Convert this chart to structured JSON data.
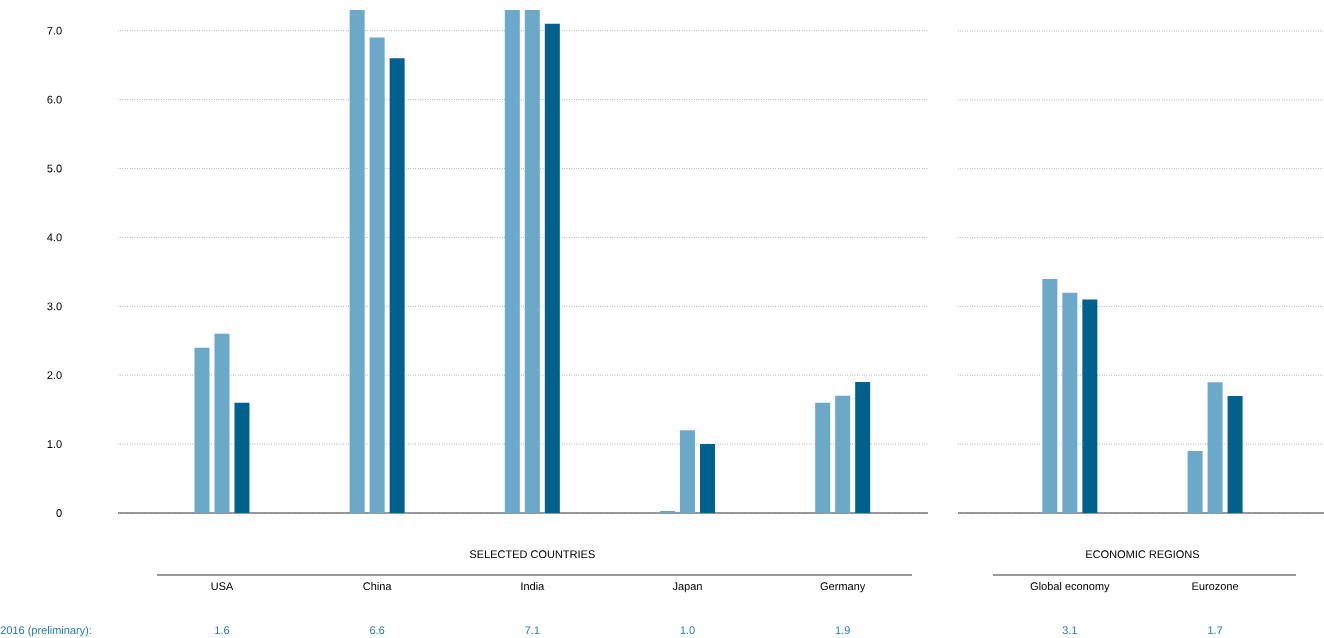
{
  "chart_data": [
    {
      "type": "bar",
      "xlabel": "SELECTED COUNTRIES",
      "categories": [
        "USA",
        "China",
        "India",
        "Japan",
        "Germany"
      ],
      "series": [
        {
          "color": "#6ca9c8",
          "values": [
            2.4,
            7.3,
            7.3,
            0.03,
            1.6
          ]
        },
        {
          "color": "#6ca9c8",
          "values": [
            2.6,
            6.9,
            7.3,
            1.2,
            1.7
          ]
        },
        {
          "name": "2016 (preliminary):",
          "color": "#00628c",
          "values": [
            1.6,
            6.6,
            7.1,
            1.0,
            1.9
          ],
          "value_labels": [
            "1.6",
            "6.6",
            "7.1",
            "1.0",
            "1.9"
          ]
        }
      ],
      "ylim": [
        0,
        7.3
      ],
      "yticks": [
        0,
        {
          "value": 1,
          "label": "1.0"
        },
        {
          "value": 2,
          "label": "2.0"
        },
        {
          "value": 3,
          "label": "3.0"
        },
        {
          "value": 4,
          "label": "4.0"
        },
        {
          "value": 5,
          "label": "5.0"
        },
        {
          "value": 6,
          "label": "6.0"
        },
        {
          "value": 7,
          "label": "7.0"
        }
      ],
      "grid": "y"
    },
    {
      "type": "bar",
      "xlabel": "ECONOMIC REGIONS",
      "categories": [
        "Global economy",
        "Eurozone"
      ],
      "series": [
        {
          "color": "#6ca9c8",
          "values": [
            3.4,
            0.9
          ]
        },
        {
          "color": "#6ca9c8",
          "values": [
            3.2,
            1.9
          ]
        },
        {
          "color": "#00628c",
          "values": [
            3.1,
            1.7
          ],
          "value_labels": [
            "3.1",
            "1.7"
          ]
        }
      ],
      "ylim": [
        0,
        7
      ],
      "yticks": [
        {
          "value": 0,
          "label": null
        },
        {
          "value": 1,
          "label": null
        },
        {
          "value": 2,
          "label": null
        },
        {
          "value": 3,
          "label": null
        },
        {
          "value": 4,
          "label": null
        },
        {
          "value": 5,
          "label": null
        },
        {
          "value": 6,
          "label": null
        },
        {
          "value": 7,
          "label": null
        }
      ],
      "grid": "y",
      "tick_labels": "x"
    }
  ]
}
